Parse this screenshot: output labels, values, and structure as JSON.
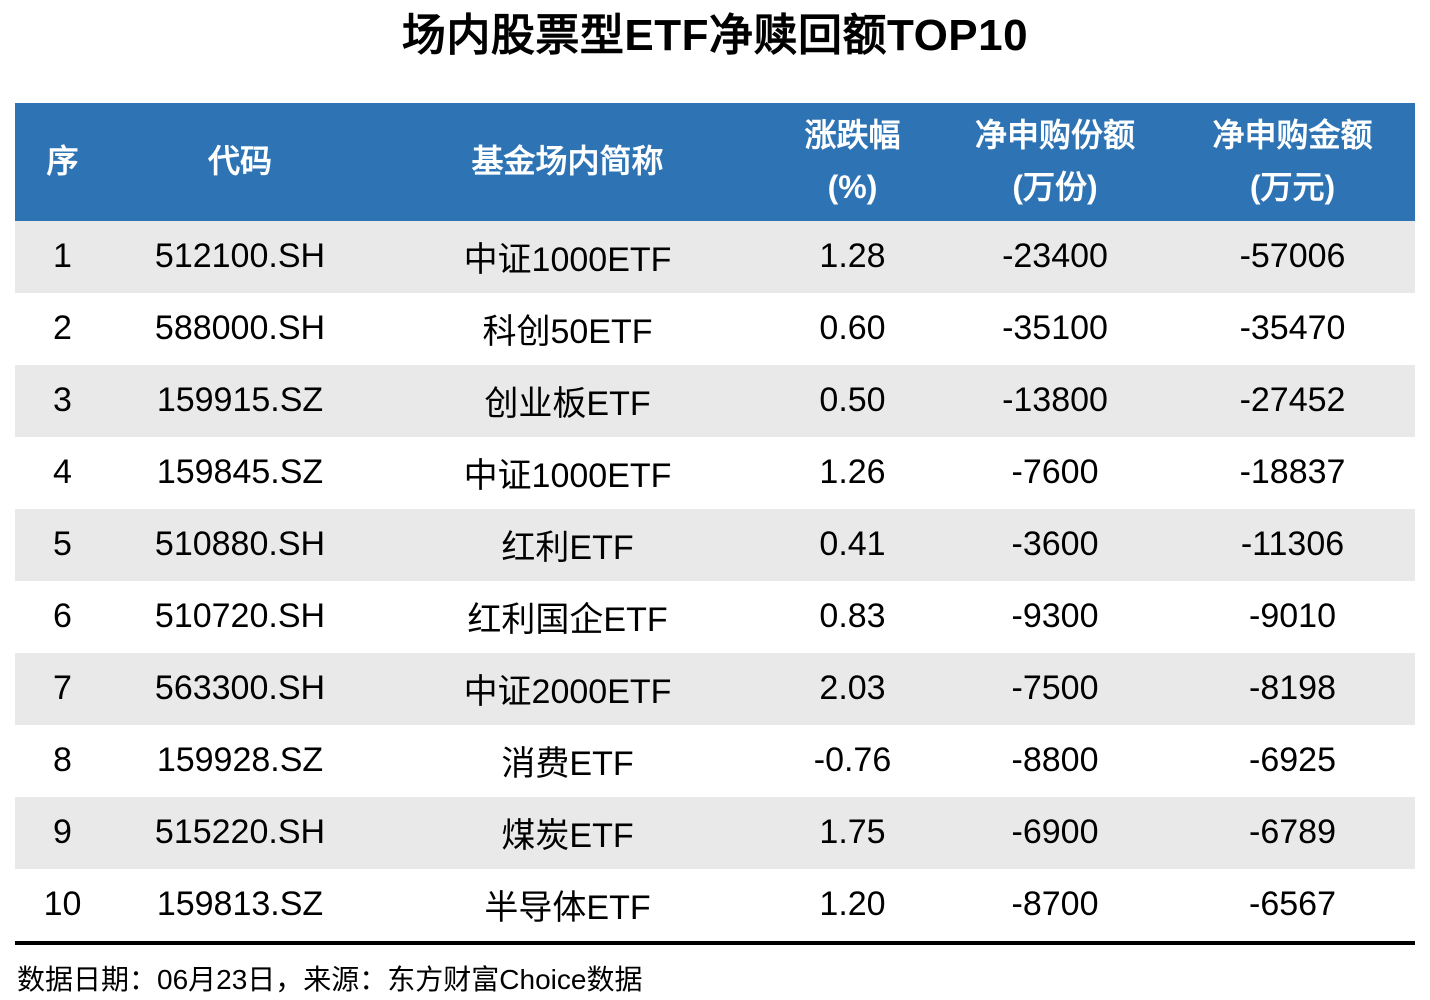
{
  "title": "场内股票型ETF净赎回额TOP10",
  "colors": {
    "header_bg": "#2E74B5",
    "header_text": "#FFFFFF",
    "row_stripe": "#E9E9E9",
    "row_plain": "#FFFFFF",
    "table_bottom_rule": "#000000",
    "text": "#000000"
  },
  "table": {
    "columns": [
      {
        "id": "rank",
        "lines": [
          "序"
        ]
      },
      {
        "id": "code",
        "lines": [
          "代码"
        ]
      },
      {
        "id": "name",
        "lines": [
          "基金场内简称"
        ]
      },
      {
        "id": "change_pct",
        "lines": [
          "涨跌幅",
          "(%)"
        ]
      },
      {
        "id": "net_shares",
        "lines": [
          "净申购份额",
          "(万份)"
        ]
      },
      {
        "id": "net_amount",
        "lines": [
          "净申购金额",
          "(万元)"
        ]
      }
    ],
    "rows": [
      {
        "rank": "1",
        "code": "512100.SH",
        "name": "中证1000ETF",
        "change_pct": "1.28",
        "net_shares": "-23400",
        "net_amount": "-57006"
      },
      {
        "rank": "2",
        "code": "588000.SH",
        "name": "科创50ETF",
        "change_pct": "0.60",
        "net_shares": "-35100",
        "net_amount": "-35470"
      },
      {
        "rank": "3",
        "code": "159915.SZ",
        "name": "创业板ETF",
        "change_pct": "0.50",
        "net_shares": "-13800",
        "net_amount": "-27452"
      },
      {
        "rank": "4",
        "code": "159845.SZ",
        "name": "中证1000ETF",
        "change_pct": "1.26",
        "net_shares": "-7600",
        "net_amount": "-18837"
      },
      {
        "rank": "5",
        "code": "510880.SH",
        "name": "红利ETF",
        "change_pct": "0.41",
        "net_shares": "-3600",
        "net_amount": "-11306"
      },
      {
        "rank": "6",
        "code": "510720.SH",
        "name": "红利国企ETF",
        "change_pct": "0.83",
        "net_shares": "-9300",
        "net_amount": "-9010"
      },
      {
        "rank": "7",
        "code": "563300.SH",
        "name": "中证2000ETF",
        "change_pct": "2.03",
        "net_shares": "-7500",
        "net_amount": "-8198"
      },
      {
        "rank": "8",
        "code": "159928.SZ",
        "name": "消费ETF",
        "change_pct": "-0.76",
        "net_shares": "-8800",
        "net_amount": "-6925"
      },
      {
        "rank": "9",
        "code": "515220.SH",
        "name": "煤炭ETF",
        "change_pct": "1.75",
        "net_shares": "-6900",
        "net_amount": "-6789"
      },
      {
        "rank": "10",
        "code": "159813.SZ",
        "name": "半导体ETF",
        "change_pct": "1.20",
        "net_shares": "-8700",
        "net_amount": "-6567"
      }
    ]
  },
  "footer": {
    "note": "数据日期：06月23日，来源：东方财富Choice数据"
  },
  "chart_data": {
    "type": "table",
    "title": "场内股票型ETF净赎回额TOP10",
    "columns": [
      "序",
      "代码",
      "基金场内简称",
      "涨跌幅(%)",
      "净申购份额(万份)",
      "净申购金额(万元)"
    ],
    "rows": [
      [
        1,
        "512100.SH",
        "中证1000ETF",
        1.28,
        -23400,
        -57006
      ],
      [
        2,
        "588000.SH",
        "科创50ETF",
        0.6,
        -35100,
        -35470
      ],
      [
        3,
        "159915.SZ",
        "创业板ETF",
        0.5,
        -13800,
        -27452
      ],
      [
        4,
        "159845.SZ",
        "中证1000ETF",
        1.26,
        -7600,
        -18837
      ],
      [
        5,
        "510880.SH",
        "红利ETF",
        0.41,
        -3600,
        -11306
      ],
      [
        6,
        "510720.SH",
        "红利国企ETF",
        0.83,
        -9300,
        -9010
      ],
      [
        7,
        "563300.SH",
        "中证2000ETF",
        2.03,
        -7500,
        -8198
      ],
      [
        8,
        "159928.SZ",
        "消费ETF",
        -0.76,
        -8800,
        -6925
      ],
      [
        9,
        "515220.SH",
        "煤炭ETF",
        1.75,
        -6900,
        -6789
      ],
      [
        10,
        "159813.SZ",
        "半导体ETF",
        1.2,
        -8700,
        -6567
      ]
    ],
    "source_note": "数据日期：06月23日，来源：东方财富Choice数据"
  }
}
